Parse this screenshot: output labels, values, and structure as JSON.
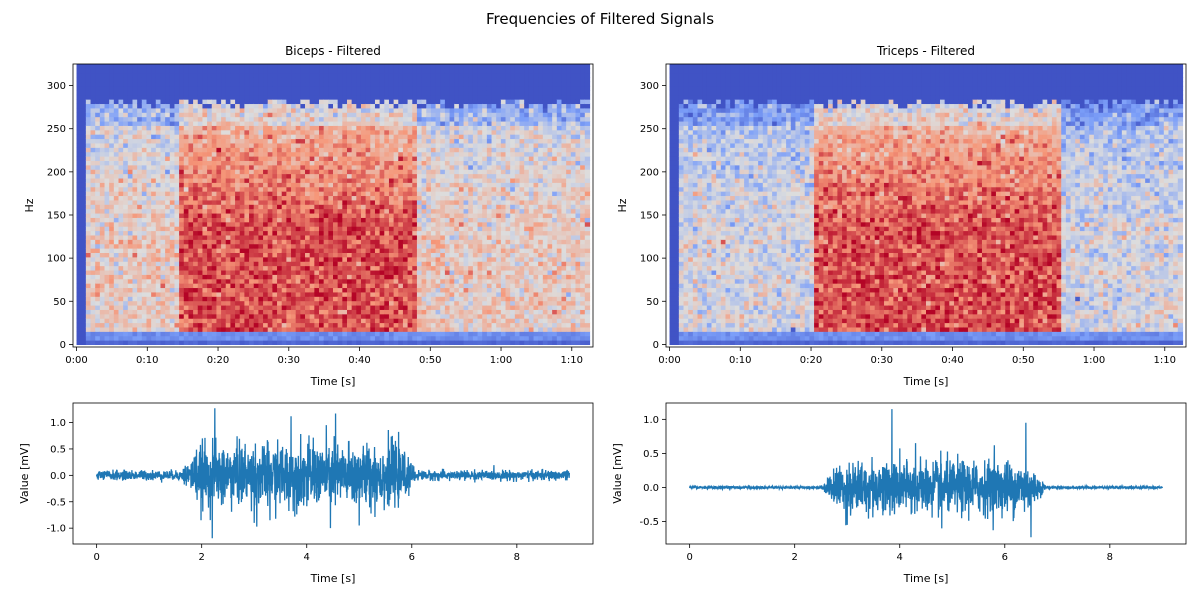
{
  "figure": {
    "title": "Frequencies of Filtered Signals"
  },
  "chart_data": [
    {
      "type": "heatmap",
      "title": "Biceps - Filtered",
      "xlabel": "Time [s]",
      "ylabel": "Hz",
      "xlim": [
        -0.5,
        73
      ],
      "ylim": [
        -3,
        325
      ],
      "x_ticks": [
        0,
        10,
        20,
        30,
        40,
        50,
        60,
        70
      ],
      "x_tick_labels": [
        "0:00",
        "0:10",
        "0:20",
        "0:30",
        "0:40",
        "0:50",
        "1:00",
        "1:10"
      ],
      "y_ticks": [
        0,
        50,
        100,
        150,
        200,
        250,
        300
      ],
      "colormap": "coolwarm",
      "activity_window": [
        14,
        48
      ],
      "band_upper_hz": 280
    },
    {
      "type": "heatmap",
      "title": "Triceps - Filtered",
      "xlabel": "Time [s]",
      "ylabel": "Hz",
      "xlim": [
        -0.5,
        73
      ],
      "ylim": [
        -3,
        325
      ],
      "x_ticks": [
        0,
        10,
        20,
        30,
        40,
        50,
        60,
        70
      ],
      "x_tick_labels": [
        "0:00",
        "0:10",
        "0:20",
        "0:30",
        "0:40",
        "0:50",
        "1:00",
        "1:10"
      ],
      "y_ticks": [
        0,
        50,
        100,
        150,
        200,
        250,
        300
      ],
      "colormap": "coolwarm",
      "activity_window": [
        20,
        55
      ],
      "band_upper_hz": 280
    },
    {
      "type": "line",
      "title": "",
      "xlabel": "Time [s]",
      "ylabel": "Value [mV]",
      "xlim": [
        -0.45,
        9.45
      ],
      "ylim": [
        -1.3,
        1.37
      ],
      "x_ticks": [
        0,
        2,
        4,
        6,
        8
      ],
      "y_ticks": [
        -1.0,
        -0.5,
        0.0,
        0.5,
        1.0
      ],
      "color": "#1f77b4",
      "duration_s": 9,
      "activity_window": [
        1.6,
        6.1
      ],
      "baseline_amplitude_mv": 0.05,
      "peak_max_mv": 1.27,
      "peak_min_mv": -1.19,
      "peaks": [
        [
          2.25,
          1.27
        ],
        [
          2.2,
          -1.19
        ],
        [
          3.7,
          1.12
        ],
        [
          4.55,
          1.17
        ],
        [
          4.45,
          -1.0
        ],
        [
          3.05,
          -0.97
        ],
        [
          5.0,
          -0.95
        ],
        [
          3.3,
          -0.85
        ]
      ]
    },
    {
      "type": "line",
      "title": "",
      "xlabel": "Time [s]",
      "ylabel": "Value [mV]",
      "xlim": [
        -0.45,
        9.45
      ],
      "ylim": [
        -0.83,
        1.24
      ],
      "x_ticks": [
        0,
        2,
        4,
        6,
        8
      ],
      "y_ticks": [
        -0.5,
        0.0,
        0.5,
        1.0
      ],
      "color": "#1f77b4",
      "duration_s": 9,
      "activity_window": [
        2.5,
        6.8
      ],
      "baseline_amplitude_mv": 0.01,
      "peak_max_mv": 1.15,
      "peak_min_mv": -0.73,
      "peaks": [
        [
          3.85,
          1.15
        ],
        [
          6.4,
          0.95
        ],
        [
          6.5,
          -0.73
        ],
        [
          4.3,
          0.65
        ],
        [
          5.8,
          0.62
        ],
        [
          3.0,
          -0.55
        ],
        [
          4.8,
          -0.6
        ]
      ]
    }
  ]
}
